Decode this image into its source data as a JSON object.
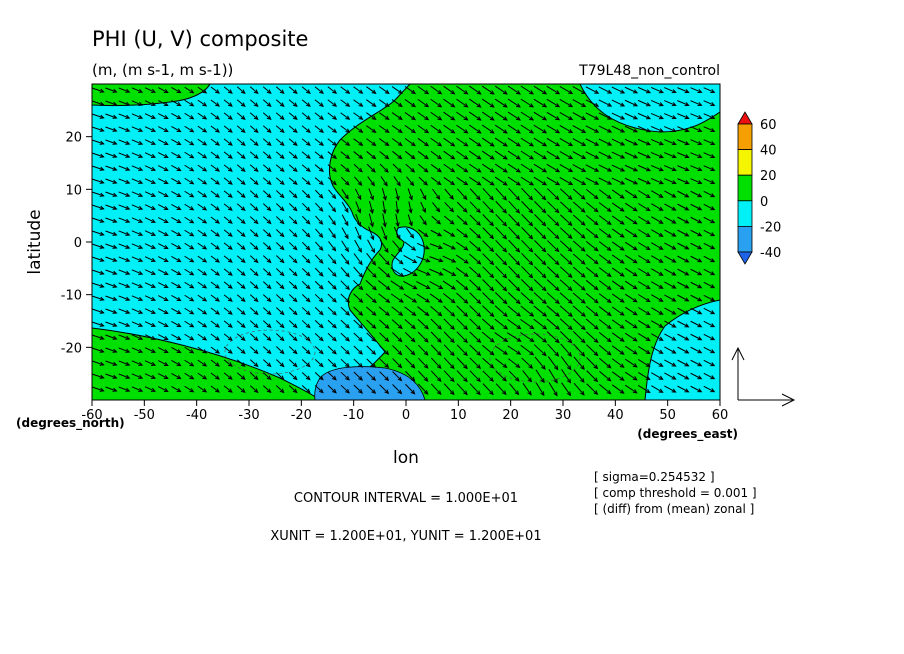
{
  "chart_data": {
    "type": "heatmap",
    "title": "PHI (U, V) composite",
    "subtitle": "(m, (m s-1, m s-1))",
    "run_label": "T79L48_non_control",
    "xlabel": "lon",
    "ylabel": "latitude",
    "x_unit_label": "(degrees_east)",
    "y_unit_label": "(degrees_north)",
    "xlim": [
      -60,
      60
    ],
    "ylim": [
      -30,
      30
    ],
    "x_ticks": [
      "-60",
      "-50",
      "-40",
      "-30",
      "-20",
      "-10",
      "0",
      "10",
      "20",
      "30",
      "40",
      "50",
      "60"
    ],
    "y_ticks": [
      "20",
      "10",
      "0",
      "-10",
      "-20"
    ],
    "colorbar": {
      "labels": [
        "60",
        "40",
        "20",
        "0",
        "-20",
        "-40"
      ],
      "colors": [
        "#ee1010",
        "#f5a000",
        "#f5f500",
        "#00e000",
        "#00f0f8",
        "#2aa0f0",
        "#1e64e8"
      ]
    },
    "fill_colors": {
      "positive": "#00e000",
      "negative": "#00f0f8",
      "strong_negative": "#2aa0f0"
    },
    "vector_color": "#000000",
    "contour_interval": "CONTOUR INTERVAL = 1.000E+01",
    "vector_units": "XUNIT = 1.200E+01, YUNIT = 1.200E+01",
    "notes": [
      "[ sigma=0.254532 ]",
      "[ comp threshold = 0.001 ]",
      "[ (diff) from (mean) zonal ]"
    ]
  }
}
